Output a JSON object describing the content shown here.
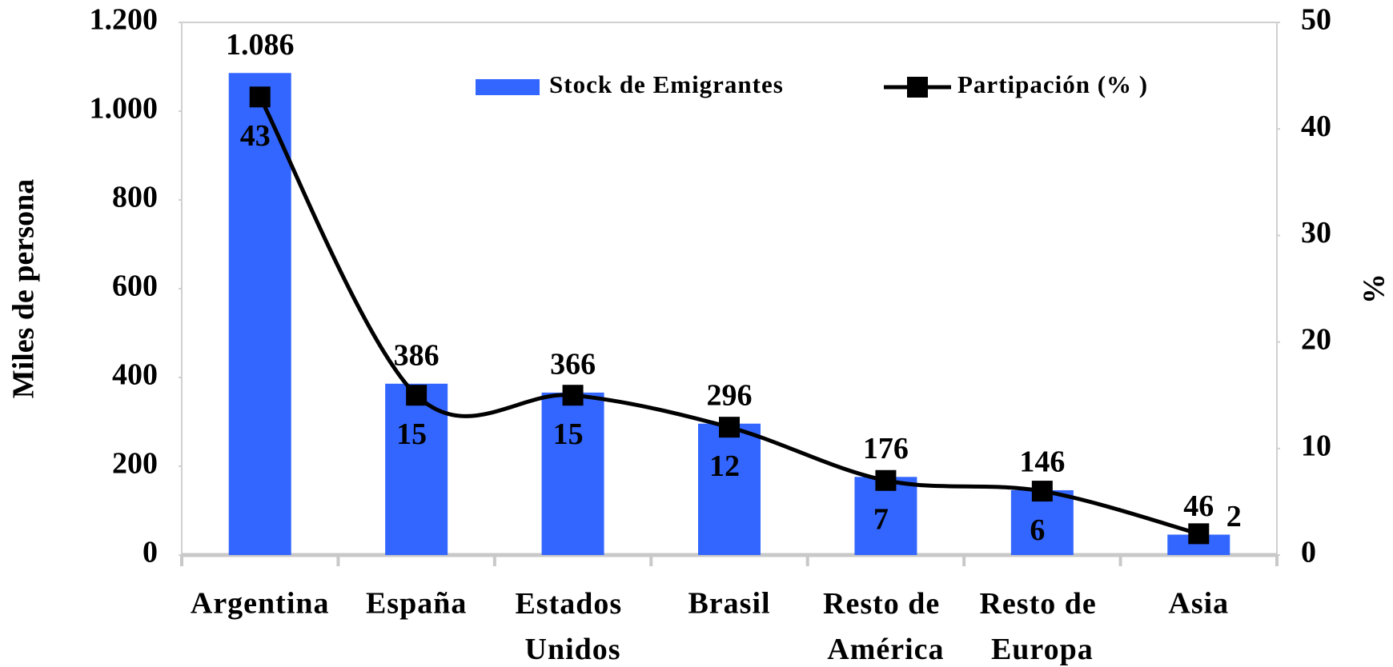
{
  "chart_data": {
    "type": "bar",
    "categories": [
      "Argentina",
      "España",
      "Estados Unidos",
      "Brasil",
      "Resto de América",
      "Resto de Europa",
      "Asia"
    ],
    "ylabel": "Miles de persona",
    "y2label": "%",
    "ylim": [
      0,
      1200
    ],
    "yticks": [
      0,
      200,
      400,
      600,
      800,
      {
        "value": 1000,
        "label": "1.000"
      },
      {
        "value": 1200,
        "label": "1.200"
      }
    ],
    "y2lim": [
      0,
      50
    ],
    "y2ticks": [
      0,
      10,
      20,
      30,
      40,
      50
    ],
    "legend": "top",
    "series": [
      {
        "name": "Stock de Emigrantes",
        "type": "bar",
        "color": "#3366ff",
        "values": [
          1086,
          386,
          366,
          296,
          176,
          146,
          46
        ],
        "value_labels": [
          "1.086",
          "386",
          "366",
          "296",
          "176",
          "146",
          "46"
        ]
      },
      {
        "name": "Partipación (% )",
        "type": "line",
        "axis": "y2",
        "color": "#000000",
        "values": [
          43,
          15,
          15,
          12,
          7,
          6,
          2
        ]
      }
    ]
  }
}
